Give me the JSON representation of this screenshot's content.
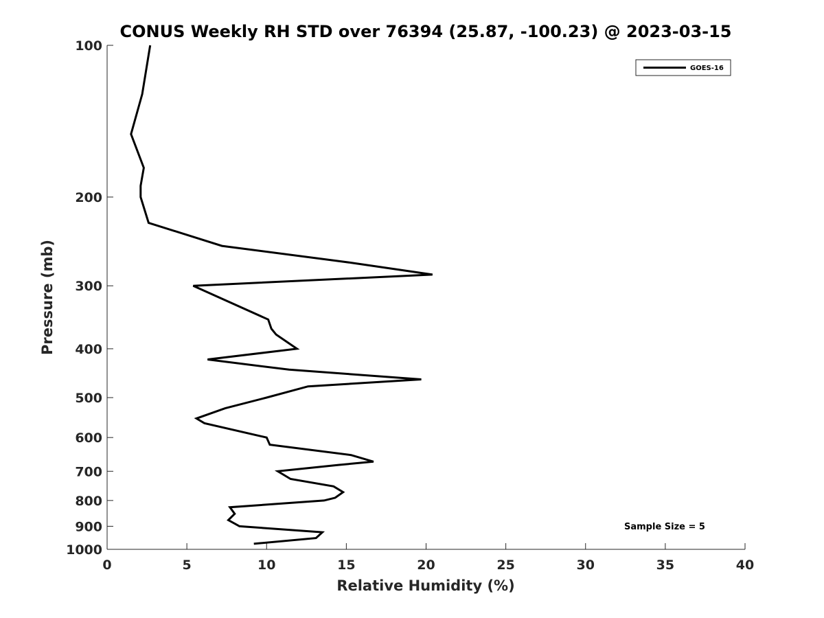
{
  "chart_data": {
    "type": "line",
    "title": "CONUS Weekly RH STD over 76394 (25.87, -100.23) @ 2023-03-15",
    "xlabel": "Relative Humidity (%)",
    "ylabel": "Pressure (mb)",
    "xlim": [
      0,
      40
    ],
    "ylim": [
      100,
      1000
    ],
    "y_scale": "log",
    "y_reversed": true,
    "xticks": [
      0,
      5,
      10,
      15,
      20,
      25,
      30,
      35,
      40
    ],
    "yticks": [
      100,
      200,
      300,
      400,
      500,
      600,
      700,
      800,
      900,
      1000
    ],
    "grid": false,
    "legend_position": "top-right",
    "series": [
      {
        "name": "GOES-16",
        "color": "#000000",
        "points": [
          [
            2.7,
            100
          ],
          [
            2.2,
            125
          ],
          [
            1.5,
            150
          ],
          [
            2.3,
            175
          ],
          [
            2.1,
            190
          ],
          [
            2.1,
            200
          ],
          [
            2.6,
            225
          ],
          [
            7.2,
            250
          ],
          [
            15.3,
            270
          ],
          [
            20.4,
            285
          ],
          [
            5.4,
            300
          ],
          [
            10.1,
            350
          ],
          [
            10.3,
            365
          ],
          [
            10.6,
            375
          ],
          [
            11.9,
            400
          ],
          [
            6.3,
            420
          ],
          [
            11.4,
            440
          ],
          [
            19.7,
            460
          ],
          [
            12.6,
            475
          ],
          [
            10.0,
            500
          ],
          [
            7.4,
            525
          ],
          [
            5.6,
            550
          ],
          [
            6.1,
            562
          ],
          [
            10.0,
            600
          ],
          [
            10.2,
            620
          ],
          [
            15.3,
            650
          ],
          [
            16.7,
            670
          ],
          [
            14.5,
            680
          ],
          [
            10.7,
            700
          ],
          [
            11.5,
            725
          ],
          [
            14.2,
            750
          ],
          [
            14.8,
            770
          ],
          [
            14.3,
            790
          ],
          [
            13.6,
            800
          ],
          [
            7.7,
            825
          ],
          [
            8.0,
            850
          ],
          [
            7.6,
            875
          ],
          [
            8.3,
            900
          ],
          [
            13.5,
            925
          ],
          [
            13.1,
            950
          ],
          [
            9.2,
            975
          ]
        ]
      }
    ],
    "annotations": [
      "Sample Size = 5"
    ]
  }
}
